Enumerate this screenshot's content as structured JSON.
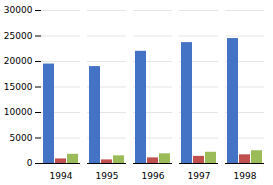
{
  "chart_data": {
    "type": "bar",
    "categories": [
      "1994",
      "1995",
      "1996",
      "1997",
      "1998"
    ],
    "series": [
      {
        "color": "#4472C4",
        "values": [
          19500,
          19000,
          22000,
          23700,
          24500
        ]
      },
      {
        "color": "#C0504D",
        "values": [
          900,
          700,
          1100,
          1400,
          1700
        ]
      },
      {
        "color": "#9BBB59",
        "values": [
          1800,
          1500,
          1900,
          2200,
          2500
        ]
      }
    ],
    "ylim": [
      0,
      30000
    ],
    "yticks": [
      0,
      5000,
      10000,
      15000,
      20000,
      25000,
      30000
    ],
    "grid": true
  }
}
